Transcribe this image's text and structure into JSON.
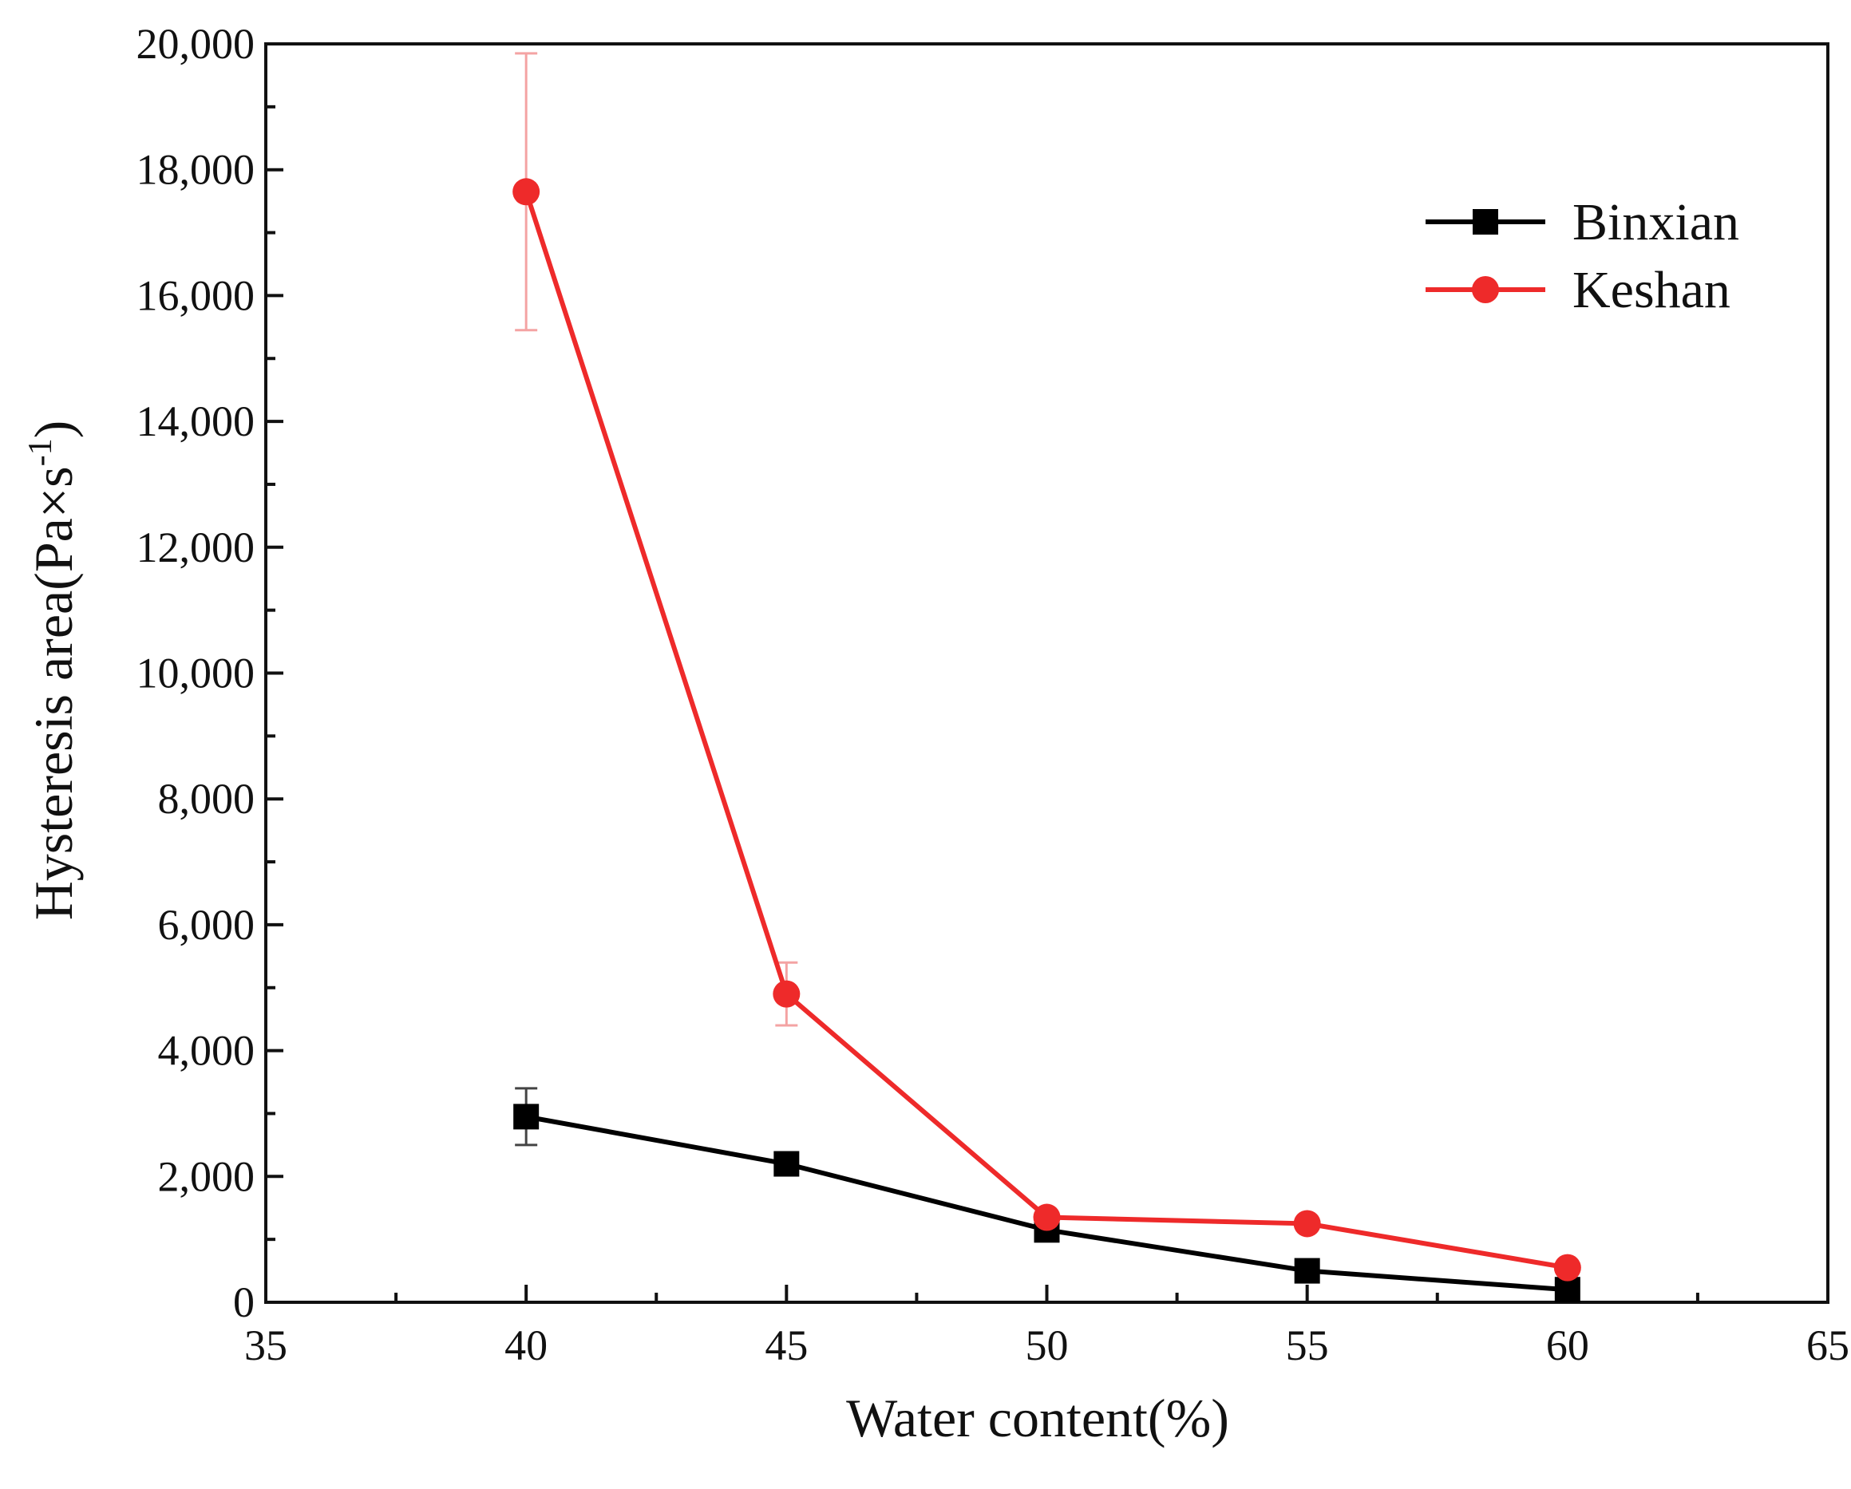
{
  "chart_data": {
    "type": "line",
    "title": "",
    "xlabel": "Water content(%)",
    "ylabel_main": "Hysteresis area(Pa×s",
    "ylabel_sup": "-1",
    "ylabel_close": ")",
    "xlim": [
      35,
      65
    ],
    "ylim": [
      0,
      20000
    ],
    "xticks": [
      35,
      40,
      45,
      50,
      55,
      60,
      65
    ],
    "xtick_labels": [
      "35",
      "40",
      "45",
      "50",
      "55",
      "60",
      "65"
    ],
    "yticks": [
      0,
      2000,
      4000,
      6000,
      8000,
      10000,
      12000,
      14000,
      16000,
      18000,
      20000
    ],
    "ytick_labels": [
      "0",
      "2,000",
      "4,000",
      "6,000",
      "8,000",
      "10,000",
      "12,000",
      "14,000",
      "16,000",
      "18,000",
      "20,000"
    ],
    "grid": false,
    "legend_position": "top-right",
    "series": [
      {
        "name": "Binxian",
        "marker": "square",
        "color": "#000000",
        "x": [
          40,
          45,
          50,
          55,
          60
        ],
        "y": [
          2950,
          2200,
          1150,
          500,
          200
        ],
        "error": [
          450,
          150,
          100,
          50,
          50
        ]
      },
      {
        "name": "Keshan",
        "marker": "circle",
        "color": "#ee2a2a",
        "x": [
          40,
          45,
          50,
          55,
          60
        ],
        "y": [
          17650,
          4900,
          1350,
          1250,
          550
        ],
        "error": [
          2200,
          500,
          80,
          80,
          60
        ]
      }
    ]
  }
}
